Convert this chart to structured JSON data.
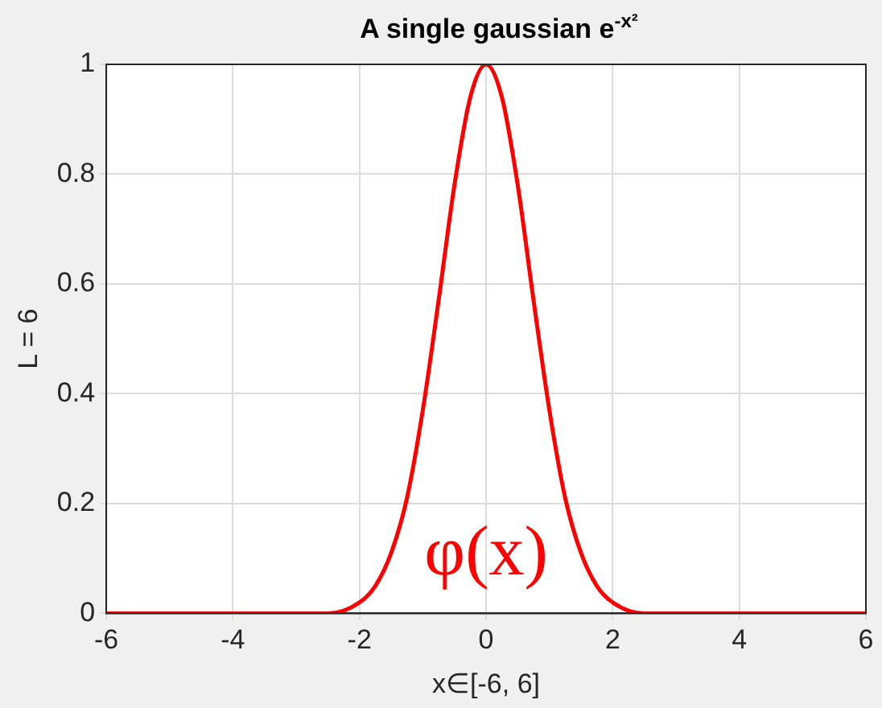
{
  "chart_data": {
    "type": "line",
    "title": "A single gaussian e$^{-x²}$",
    "xlabel": "x∈[-6, 6]",
    "ylabel": "L = 6",
    "x": [
      -6,
      -4,
      -3,
      -2.5,
      -2,
      -1.75,
      -1.5,
      -1.25,
      -1,
      -0.75,
      -0.5,
      -0.25,
      0,
      0.25,
      0.5,
      0.75,
      1,
      1.25,
      1.5,
      1.75,
      2,
      2.5,
      3,
      4,
      6
    ],
    "series": [
      {
        "name": "φ(x)",
        "color": "#ff0000",
        "values": [
          0,
          0,
          0,
          0,
          0.02,
          0.05,
          0.11,
          0.21,
          0.37,
          0.57,
          0.78,
          0.94,
          1,
          0.94,
          0.78,
          0.57,
          0.37,
          0.21,
          0.11,
          0.05,
          0.02,
          0,
          0,
          0,
          0
        ]
      }
    ],
    "xlim": [
      -6,
      6
    ],
    "ylim": [
      0,
      1
    ],
    "xticks": [
      -6,
      -4,
      -2,
      0,
      2,
      4,
      6
    ],
    "yticks": [
      0,
      0.2,
      0.4,
      0.6,
      0.8,
      1
    ],
    "grid": true,
    "legend": false,
    "marker": "none"
  }
}
